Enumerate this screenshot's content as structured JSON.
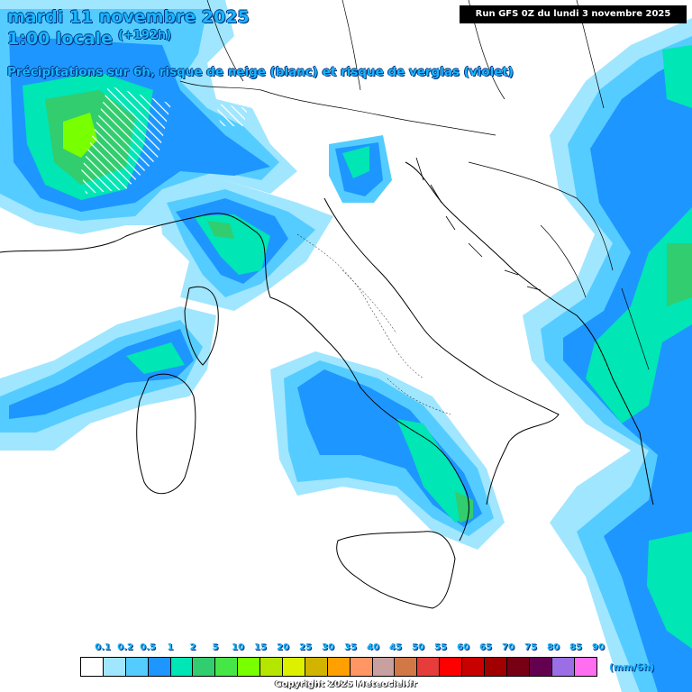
{
  "header": {
    "date": "mardi 11 novembre 2025",
    "time": "1:00 locale",
    "lead": "(+192h)",
    "subtitle": "Précipitations sur 6h, risque de neige (blanc) et risque de verglas (violet)",
    "run": "Run GFS 0Z du lundi 3 novembre 2025"
  },
  "legend": {
    "labels": [
      "0.1",
      "0.2",
      "0.5",
      "1",
      "2",
      "5",
      "10",
      "15",
      "20",
      "25",
      "30",
      "35",
      "40",
      "45",
      "50",
      "55",
      "60",
      "65",
      "70",
      "75",
      "80",
      "85",
      "90"
    ],
    "colors": [
      "#ffffff",
      "#a0e6ff",
      "#55ccff",
      "#1e96ff",
      "#00e6b4",
      "#32cd6e",
      "#46e646",
      "#78ff00",
      "#b4e600",
      "#dcf000",
      "#d2b400",
      "#ffa000",
      "#ff9664",
      "#c8a0a0",
      "#d27846",
      "#e63c3c",
      "#ff0000",
      "#c80000",
      "#a00000",
      "#780014",
      "#640050",
      "#9b6ee6",
      "#ff6ef0"
    ],
    "unit": "(mm/6h)"
  },
  "colors": {
    "precip_light": "#a0e6ff",
    "precip_low": "#55ccff",
    "precip_mid": "#1e96ff",
    "precip_teal": "#00e6b4",
    "precip_green": "#32cd6e",
    "precip_bright": "#78ff00",
    "title": "#1ab6ff"
  },
  "footer": {
    "copyright": "Copyright 2025 Meteociel.fr"
  }
}
